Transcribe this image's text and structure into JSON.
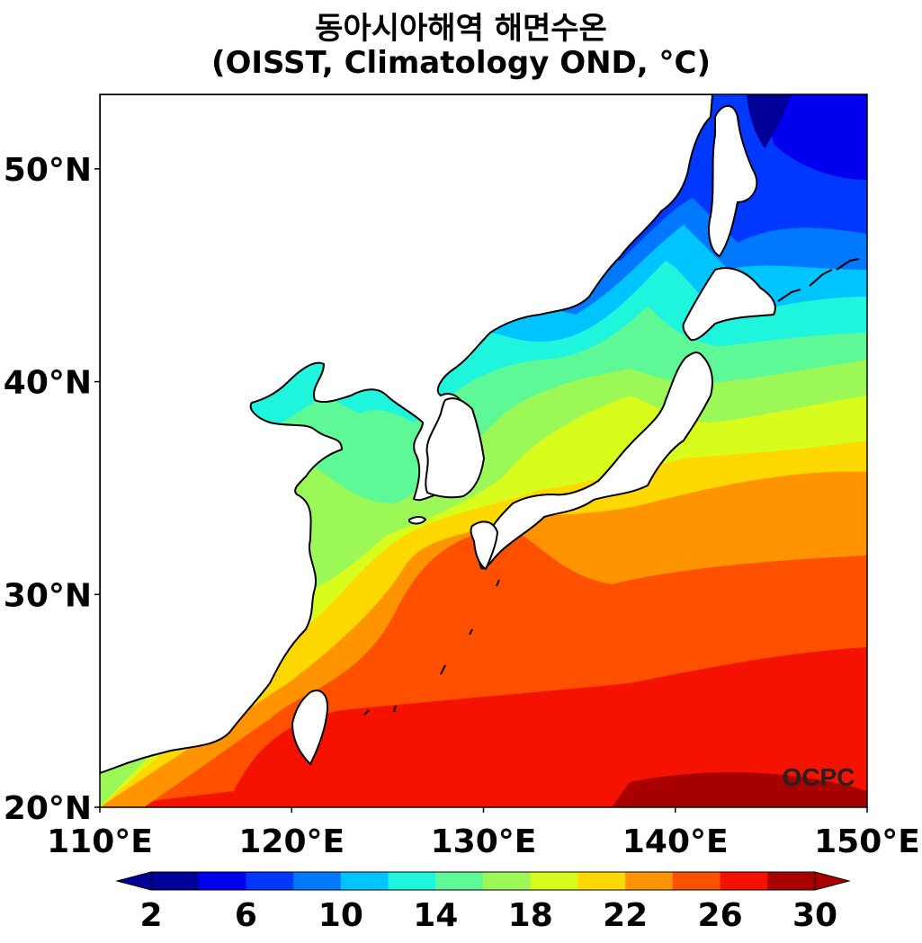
{
  "title": {
    "line1": "동아시아해역 해면수온",
    "line2": "(OISST, Climatology OND, °C)"
  },
  "map": {
    "lon_range": [
      110,
      150
    ],
    "lat_range": [
      20,
      53.5
    ],
    "x_ticks": [
      "110°E",
      "120°E",
      "130°E",
      "140°E",
      "150°E"
    ],
    "y_ticks": [
      "20°N",
      "30°N",
      "40°N",
      "50°N"
    ],
    "watermark": "OCPC",
    "land_color": "#ffffff",
    "coastline_color": "#000000"
  },
  "colorbar": {
    "bounds": [
      2,
      4,
      6,
      8,
      10,
      12,
      14,
      16,
      18,
      20,
      22,
      24,
      26,
      28,
      30
    ],
    "tick_labels": [
      "2",
      "6",
      "10",
      "14",
      "18",
      "22",
      "26",
      "30"
    ],
    "colors": [
      "#000099",
      "#0000ee",
      "#0038ff",
      "#0078ff",
      "#00c4ff",
      "#1ef5dc",
      "#5ef996",
      "#9cf856",
      "#d8fc1c",
      "#ffd800",
      "#ff9400",
      "#ff5000",
      "#f51200",
      "#a80000"
    ],
    "extend": "both"
  }
}
